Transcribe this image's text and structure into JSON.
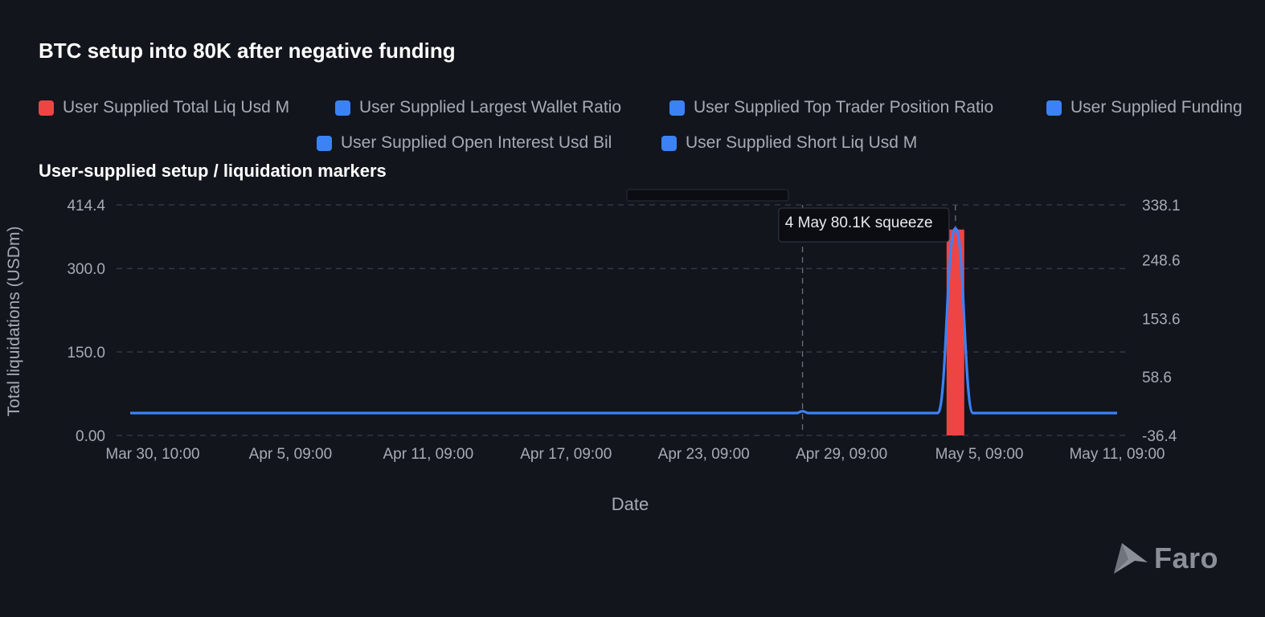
{
  "chart_data": {
    "type": "line",
    "title": "BTC setup into 80K after negative funding",
    "subtitle": "User-supplied setup / liquidation markers",
    "xlabel": "Date",
    "ylabel": "Total liquidations (USDm)",
    "ylim_left": [
      0,
      414.4
    ],
    "left_ticks": [
      "414.4",
      "300.0",
      "150.0",
      "0.00"
    ],
    "ylim_right": [
      -36.4,
      338.1
    ],
    "right_ticks": [
      "338.1",
      "248.6",
      "153.6",
      "58.6",
      "-36.4"
    ],
    "x_ticks": [
      "Mar 30, 10:00",
      "Apr 5, 09:00",
      "Apr 11, 09:00",
      "Apr 17, 09:00",
      "Apr 23, 09:00",
      "Apr 29, 09:00",
      "May 5, 09:00",
      "May 11, 09:00"
    ],
    "legend_position": "top",
    "grid": "dashed",
    "legend": [
      {
        "label": "User Supplied Total Liq Usd M",
        "color": "#ef4444"
      },
      {
        "label": "User Supplied Largest Wallet Ratio",
        "color": "#3b82f6"
      },
      {
        "label": "User Supplied Top Trader Position Ratio",
        "color": "#3b82f6"
      },
      {
        "label": "User Supplied Funding",
        "color": "#3b82f6"
      },
      {
        "label": "User Supplied Open Interest Usd Bil",
        "color": "#3b82f6"
      },
      {
        "label": "User Supplied Short Liq Usd M",
        "color": "#3b82f6"
      }
    ],
    "series": [
      {
        "name": "User Supplied Total Liq Usd M",
        "type": "bar",
        "color": "#ef4444",
        "axis": "left",
        "points": [
          {
            "x": "May 4, 12:00",
            "y": 370
          }
        ]
      },
      {
        "name": "User Supplied Short Liq Usd M",
        "type": "line",
        "color": "#3b82f6",
        "axis": "right",
        "points": [
          {
            "x": "Mar 30, 10:00",
            "y": 0
          },
          {
            "x": "Apr 27, 18:00",
            "y": 0
          },
          {
            "x": "Apr 28, 00:00",
            "y": 3
          },
          {
            "x": "Apr 28, 06:00",
            "y": 0
          },
          {
            "x": "May 3, 18:00",
            "y": 0
          },
          {
            "x": "May 4, 12:00",
            "y": 300
          },
          {
            "x": "May 5, 06:00",
            "y": 0
          },
          {
            "x": "May 11, 09:00",
            "y": 0
          }
        ]
      }
    ],
    "annotations": [
      {
        "x": "Apr 28, 00:00",
        "label": ""
      },
      {
        "x": "May 4, 12:00",
        "label": "4 May 80.1K squeeze"
      }
    ]
  },
  "colors": {
    "background": "#12151c",
    "grid": "#3a3f4a",
    "tick_text": "#a6abb5",
    "line": "#3b82f6",
    "bar": "#ef4444"
  },
  "brand": {
    "name": "Faro",
    "icon": "faro-logo-icon"
  }
}
